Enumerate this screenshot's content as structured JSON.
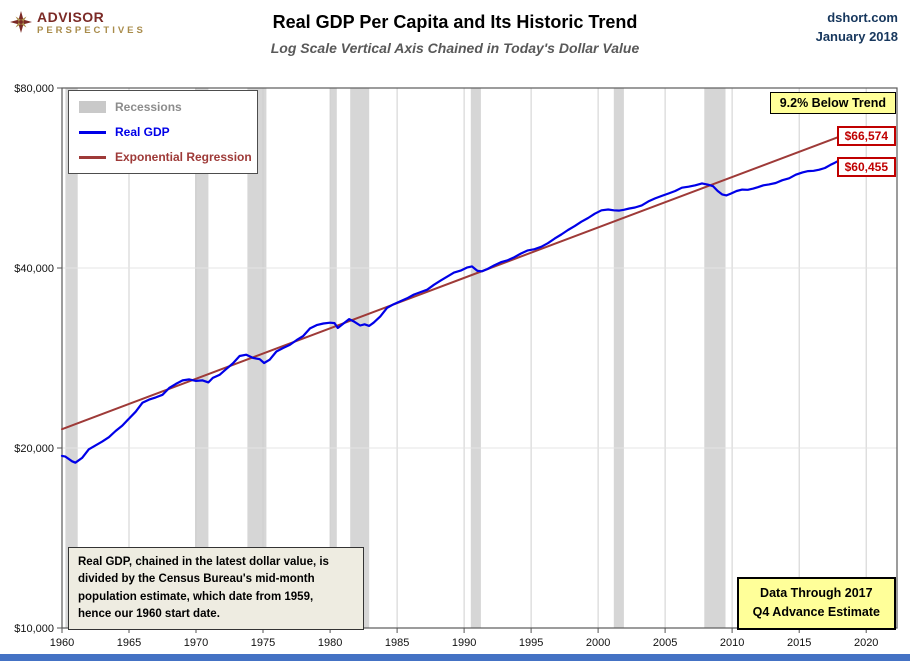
{
  "header": {
    "logo_line1": "ADVISOR",
    "logo_line2": "PERSPECTIVES",
    "source": "dshort.com",
    "date": "January 2018"
  },
  "colors": {
    "real_gdp_blue": "#0000E8",
    "regression_red": "#9E3A38",
    "recession_gray": "#D6D6D6",
    "legend_recession_text": "#8C8C8C",
    "annotation_yellow": "#FFFF99",
    "value_label_red": "#C00000",
    "note_bg": "#EEECE1",
    "header_blue": "#17375D",
    "logo_maroon": "#7B2A26",
    "logo_gold": "#A98C4B",
    "bottom_bar_blue": "#4472C4"
  },
  "chart_data": {
    "type": "line",
    "title": "Real GDP Per Capita and Its Historic Trend",
    "subtitle": "Log Scale Vertical Axis Chained in Today's Dollar Value",
    "y_scale": "log",
    "xlim": [
      1960,
      2022.3
    ],
    "ylim": [
      10000,
      80000
    ],
    "x_ticks": [
      1960,
      1965,
      1970,
      1975,
      1980,
      1985,
      1990,
      1995,
      2000,
      2005,
      2010,
      2015,
      2020
    ],
    "y_ticks": [
      {
        "value": 80000,
        "label": "$80,000"
      },
      {
        "value": 40000,
        "label": "$40,000"
      },
      {
        "value": 20000,
        "label": "$20,000"
      },
      {
        "value": 10000,
        "label": "$10,000"
      }
    ],
    "grid": "vertical gridlines every 5 years; faint horizontal lines at log doublings",
    "legend": {
      "position": "top-left",
      "items": [
        {
          "label": "Recessions",
          "swatch": "band",
          "color": "#C9C9C9",
          "text_color": "#8C8C8C"
        },
        {
          "label": "Real GDP",
          "swatch": "line",
          "color": "#0000E8",
          "text_color": "#0000E8"
        },
        {
          "label": "Exponential Regression",
          "swatch": "line",
          "color": "#9E3A38",
          "text_color": "#9E3A38"
        }
      ]
    },
    "recessions": [
      [
        1960.25,
        1961.17
      ],
      [
        1969.92,
        1970.92
      ],
      [
        1973.83,
        1975.25
      ],
      [
        1980.0,
        1980.5
      ],
      [
        1981.5,
        1982.92
      ],
      [
        1990.5,
        1991.25
      ],
      [
        2001.17,
        2001.92
      ],
      [
        2007.92,
        2009.5
      ]
    ],
    "series": [
      {
        "name": "Exponential Regression",
        "color": "#9E3A38",
        "width": 2,
        "points": [
          [
            1960.0,
            21500
          ],
          [
            2018.2,
            66574
          ]
        ]
      },
      {
        "name": "Real GDP",
        "color": "#0000E8",
        "width": 2.2,
        "points": [
          [
            1960.0,
            19400
          ],
          [
            1960.25,
            19350
          ],
          [
            1960.75,
            19000
          ],
          [
            1961.0,
            18900
          ],
          [
            1961.5,
            19250
          ],
          [
            1962.0,
            19900
          ],
          [
            1962.5,
            20200
          ],
          [
            1963.0,
            20500
          ],
          [
            1963.5,
            20850
          ],
          [
            1964.0,
            21350
          ],
          [
            1964.5,
            21800
          ],
          [
            1965.0,
            22400
          ],
          [
            1965.5,
            23000
          ],
          [
            1966.0,
            23800
          ],
          [
            1966.5,
            24100
          ],
          [
            1967.0,
            24300
          ],
          [
            1967.5,
            24550
          ],
          [
            1968.0,
            25200
          ],
          [
            1968.5,
            25600
          ],
          [
            1969.0,
            25950
          ],
          [
            1969.5,
            26050
          ],
          [
            1970.0,
            25900
          ],
          [
            1970.5,
            25950
          ],
          [
            1970.92,
            25750
          ],
          [
            1971.25,
            26200
          ],
          [
            1971.75,
            26500
          ],
          [
            1972.25,
            27100
          ],
          [
            1972.75,
            27700
          ],
          [
            1973.25,
            28500
          ],
          [
            1973.75,
            28650
          ],
          [
            1974.25,
            28300
          ],
          [
            1974.75,
            28150
          ],
          [
            1975.08,
            27750
          ],
          [
            1975.5,
            28100
          ],
          [
            1976.0,
            29000
          ],
          [
            1976.5,
            29400
          ],
          [
            1977.0,
            29750
          ],
          [
            1977.5,
            30300
          ],
          [
            1978.0,
            30800
          ],
          [
            1978.5,
            31700
          ],
          [
            1979.0,
            32100
          ],
          [
            1979.5,
            32300
          ],
          [
            1980.0,
            32400
          ],
          [
            1980.33,
            32350
          ],
          [
            1980.58,
            31750
          ],
          [
            1981.0,
            32300
          ],
          [
            1981.42,
            32850
          ],
          [
            1981.83,
            32500
          ],
          [
            1982.25,
            32050
          ],
          [
            1982.58,
            32200
          ],
          [
            1982.92,
            32000
          ],
          [
            1983.25,
            32400
          ],
          [
            1983.75,
            33200
          ],
          [
            1984.25,
            34300
          ],
          [
            1984.75,
            34800
          ],
          [
            1985.25,
            35200
          ],
          [
            1985.75,
            35600
          ],
          [
            1986.25,
            36100
          ],
          [
            1986.75,
            36450
          ],
          [
            1987.25,
            36800
          ],
          [
            1987.75,
            37500
          ],
          [
            1988.25,
            38100
          ],
          [
            1988.75,
            38700
          ],
          [
            1989.25,
            39300
          ],
          [
            1989.75,
            39600
          ],
          [
            1990.25,
            40100
          ],
          [
            1990.58,
            40250
          ],
          [
            1991.0,
            39550
          ],
          [
            1991.33,
            39500
          ],
          [
            1991.75,
            39850
          ],
          [
            1992.25,
            40400
          ],
          [
            1992.75,
            40900
          ],
          [
            1993.25,
            41200
          ],
          [
            1993.75,
            41700
          ],
          [
            1994.25,
            42300
          ],
          [
            1994.75,
            42800
          ],
          [
            1995.25,
            43000
          ],
          [
            1995.75,
            43400
          ],
          [
            1996.25,
            44000
          ],
          [
            1996.75,
            44800
          ],
          [
            1997.25,
            45500
          ],
          [
            1997.75,
            46300
          ],
          [
            1998.25,
            47000
          ],
          [
            1998.75,
            47800
          ],
          [
            1999.25,
            48500
          ],
          [
            1999.75,
            49300
          ],
          [
            2000.25,
            49950
          ],
          [
            2000.75,
            50100
          ],
          [
            2001.17,
            49950
          ],
          [
            2001.58,
            49900
          ],
          [
            2001.92,
            50050
          ],
          [
            2002.33,
            50300
          ],
          [
            2002.75,
            50500
          ],
          [
            2003.25,
            50900
          ],
          [
            2003.75,
            51700
          ],
          [
            2004.25,
            52300
          ],
          [
            2004.75,
            52800
          ],
          [
            2005.25,
            53300
          ],
          [
            2005.75,
            53800
          ],
          [
            2006.25,
            54500
          ],
          [
            2006.75,
            54700
          ],
          [
            2007.25,
            55000
          ],
          [
            2007.75,
            55400
          ],
          [
            2008.17,
            55150
          ],
          [
            2008.58,
            54800
          ],
          [
            2008.92,
            53800
          ],
          [
            2009.25,
            53100
          ],
          [
            2009.58,
            52900
          ],
          [
            2009.92,
            53300
          ],
          [
            2010.33,
            53800
          ],
          [
            2010.75,
            54100
          ],
          [
            2011.17,
            54050
          ],
          [
            2011.58,
            54300
          ],
          [
            2011.92,
            54600
          ],
          [
            2012.33,
            55000
          ],
          [
            2012.75,
            55200
          ],
          [
            2013.25,
            55500
          ],
          [
            2013.75,
            56100
          ],
          [
            2014.25,
            56500
          ],
          [
            2014.75,
            57300
          ],
          [
            2015.25,
            57800
          ],
          [
            2015.67,
            58100
          ],
          [
            2016.08,
            58150
          ],
          [
            2016.5,
            58400
          ],
          [
            2016.92,
            58800
          ],
          [
            2017.33,
            59500
          ],
          [
            2017.67,
            60000
          ],
          [
            2017.95,
            60455
          ]
        ]
      }
    ],
    "annotations": {
      "below_trend": "9.2% Below Trend",
      "trend_end_label": "$66,574",
      "gdp_end_label": "$60,455",
      "note": "Real GDP, chained in the latest dollar value, is\ndivided by the Census Bureau's mid-month\npopulation estimate, which date from 1959,\nhence our 1960 start date.",
      "data_through": "Data Through 2017\nQ4 Advance Estimate"
    }
  }
}
